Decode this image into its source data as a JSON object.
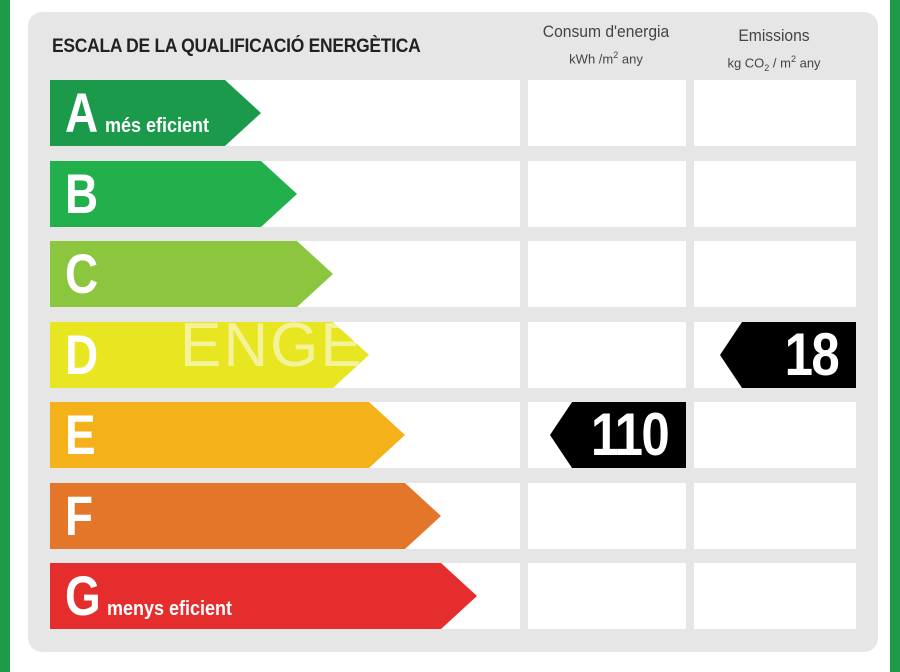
{
  "title": "ESCALA DE LA QUALIFICACIÓ ENERGÈTICA",
  "columns": {
    "energy": {
      "label": "Consum d'energia",
      "unit_prefix": "kWh /m",
      "unit_exp": "2",
      "unit_suffix": " any"
    },
    "emissions": {
      "label": "Emissions",
      "unit_prefix": "kg CO",
      "unit_sub": "2",
      "unit_mid": " / m",
      "unit_exp": "2",
      "unit_suffix": " any"
    }
  },
  "ratings": [
    {
      "letter": "A",
      "caption": "més eficient",
      "color": "#1a9a4a"
    },
    {
      "letter": "B",
      "caption": "",
      "color": "#21b04b"
    },
    {
      "letter": "C",
      "caption": "",
      "color": "#8cc63f"
    },
    {
      "letter": "D",
      "caption": "",
      "color": "#e8e521"
    },
    {
      "letter": "E",
      "caption": "",
      "color": "#f5b11a"
    },
    {
      "letter": "F",
      "caption": "",
      "color": "#e4762a"
    },
    {
      "letter": "G",
      "caption": "menys eficient",
      "color": "#e52d2d"
    }
  ],
  "energy_value": {
    "rating": "E",
    "value": "110"
  },
  "emissions_value": {
    "rating": "D",
    "value": "18"
  },
  "watermark": "ENGE"
}
